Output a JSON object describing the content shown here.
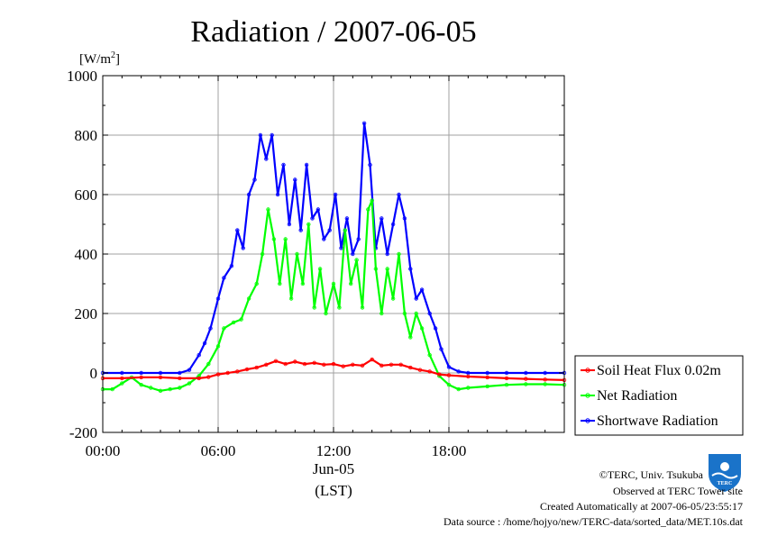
{
  "chart_data": {
    "type": "line",
    "title": "Radiation / 2007-06-05",
    "ylabel": "[W/m²]",
    "ylabel_base": "[W/m",
    "ylabel_sup": "2",
    "ylabel_close": "]",
    "xlabel": "Jun-05",
    "xlabel2": "(LST)",
    "xlim": [
      0,
      24
    ],
    "ylim": [
      -200,
      1000
    ],
    "x_ticks": [
      {
        "x": 0,
        "label": "00:00"
      },
      {
        "x": 6,
        "label": "06:00"
      },
      {
        "x": 12,
        "label": "12:00"
      },
      {
        "x": 18,
        "label": "18:00"
      }
    ],
    "y_ticks": [
      {
        "y": -200,
        "label": "-200"
      },
      {
        "y": 0,
        "label": "0"
      },
      {
        "y": 200,
        "label": "200"
      },
      {
        "y": 400,
        "label": "400"
      },
      {
        "y": 600,
        "label": "600"
      },
      {
        "y": 800,
        "label": "800"
      },
      {
        "y": 1000,
        "label": "1000"
      }
    ],
    "grid": true,
    "legend_position": "bottom-right outside",
    "series": [
      {
        "name": "Soil Heat Flux 0.02m",
        "color": "#ff0000",
        "x": [
          0,
          1,
          2,
          3,
          4,
          5,
          5.5,
          6,
          6.5,
          7,
          7.5,
          8,
          8.5,
          9,
          9.5,
          10,
          10.5,
          11,
          11.5,
          12,
          12.5,
          13,
          13.5,
          14,
          14.5,
          15,
          15.5,
          16,
          16.5,
          17,
          17.5,
          18,
          19,
          20,
          21,
          22,
          23,
          24
        ],
        "y": [
          -18,
          -18,
          -15,
          -15,
          -18,
          -18,
          -14,
          -5,
          0,
          5,
          12,
          18,
          28,
          40,
          30,
          38,
          30,
          34,
          28,
          30,
          22,
          28,
          25,
          45,
          25,
          28,
          28,
          18,
          10,
          5,
          -5,
          -8,
          -12,
          -15,
          -18,
          -20,
          -22,
          -24
        ]
      },
      {
        "name": "Net Radiation",
        "color": "#00ff00",
        "x": [
          0,
          0.5,
          1,
          1.5,
          2,
          2.5,
          3,
          3.5,
          4,
          4.5,
          5,
          5.5,
          6,
          6.3,
          6.8,
          7.2,
          7.6,
          8,
          8.3,
          8.6,
          8.9,
          9.2,
          9.5,
          9.8,
          10.1,
          10.4,
          10.7,
          11,
          11.3,
          11.6,
          12,
          12.3,
          12.6,
          12.9,
          13.2,
          13.5,
          13.8,
          14,
          14.2,
          14.5,
          14.8,
          15.1,
          15.4,
          15.7,
          16,
          16.3,
          16.6,
          17,
          17.5,
          18,
          18.5,
          19,
          20,
          21,
          22,
          23,
          24
        ],
        "y": [
          -55,
          -55,
          -35,
          -15,
          -40,
          -50,
          -60,
          -55,
          -50,
          -35,
          -10,
          30,
          90,
          150,
          170,
          180,
          250,
          300,
          400,
          550,
          450,
          300,
          450,
          250,
          400,
          300,
          500,
          220,
          350,
          200,
          300,
          220,
          480,
          300,
          380,
          220,
          550,
          580,
          350,
          200,
          350,
          250,
          400,
          200,
          120,
          200,
          150,
          60,
          -10,
          -40,
          -55,
          -50,
          -45,
          -40,
          -38,
          -38,
          -40
        ]
      },
      {
        "name": "Shortwave Radiation",
        "color": "#0000ff",
        "x": [
          0,
          1,
          2,
          3,
          4,
          4.5,
          5,
          5.3,
          5.6,
          6,
          6.3,
          6.7,
          7,
          7.3,
          7.6,
          7.9,
          8.2,
          8.5,
          8.8,
          9.1,
          9.4,
          9.7,
          10,
          10.3,
          10.6,
          10.9,
          11.2,
          11.5,
          11.8,
          12.1,
          12.4,
          12.7,
          13,
          13.3,
          13.6,
          13.9,
          14.2,
          14.5,
          14.8,
          15.1,
          15.4,
          15.7,
          16,
          16.3,
          16.6,
          17,
          17.3,
          17.6,
          18,
          18.5,
          19,
          20,
          21,
          22,
          23,
          24
        ],
        "y": [
          0,
          0,
          0,
          0,
          0,
          10,
          60,
          100,
          150,
          250,
          320,
          360,
          480,
          420,
          600,
          650,
          800,
          720,
          800,
          600,
          700,
          500,
          650,
          480,
          700,
          520,
          550,
          450,
          480,
          600,
          420,
          520,
          400,
          450,
          840,
          700,
          420,
          520,
          400,
          500,
          600,
          520,
          350,
          250,
          280,
          200,
          150,
          80,
          20,
          5,
          0,
          0,
          0,
          0,
          0,
          0
        ]
      }
    ]
  },
  "credits": {
    "copyright": "©TERC, Univ. Tsukuba",
    "observed": "Observed at TERC Tower site",
    "created": "Created Automatically at 2007-06-05/23:55:17",
    "source": "Data source : /home/hojyo/new/TERC-data/sorted_data/MET.10s.dat",
    "logo_text": "TERC"
  }
}
